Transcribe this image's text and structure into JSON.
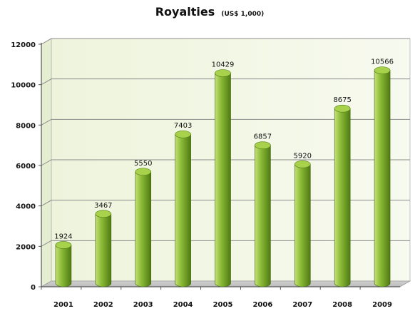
{
  "chart_data": {
    "type": "bar",
    "title": "Royalties",
    "subtitle": "(US$ 1,000)",
    "categories": [
      "2001",
      "2002",
      "2003",
      "2004",
      "2005",
      "2006",
      "2007",
      "2008",
      "2009"
    ],
    "values": [
      1924,
      3467,
      5550,
      7403,
      10429,
      6857,
      5920,
      8675,
      10566
    ],
    "yticks": [
      "0",
      "2000",
      "4000",
      "6000",
      "8000",
      "10000",
      "12000"
    ],
    "ylim": [
      0,
      12000
    ],
    "xlabel": "",
    "ylabel": "",
    "grid": true,
    "colors": {
      "bar_light": "#c6e07a",
      "bar_mid": "#8fbf3a",
      "bar_dark": "#4f7a12",
      "bar_top": "#a8d24c",
      "plot_bg": "#f2f7e3",
      "floor": "#d9d9d9",
      "gridline": "#8c8c8c"
    }
  }
}
